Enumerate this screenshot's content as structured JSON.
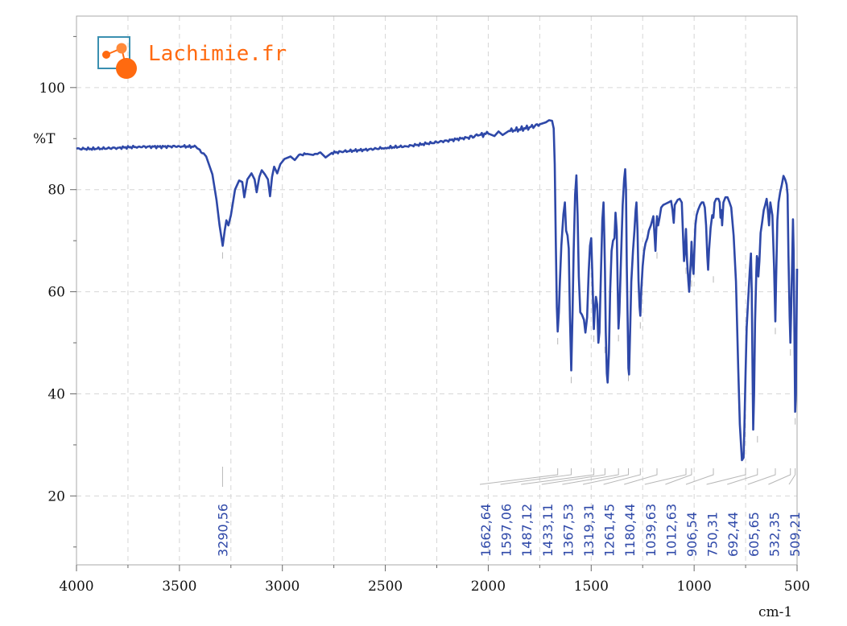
{
  "colors": {
    "series": "#2e48a8",
    "peak_label": "#2e48a8",
    "grid": "#d6d6d6",
    "logo": "#ff6a10",
    "logo_frame": "#3a8fb0"
  },
  "logo": {
    "text": "Lachimie.fr"
  },
  "chart_data": {
    "type": "line",
    "title": "",
    "xlabel": "cm-1",
    "ylabel": "%T",
    "xlim": [
      4000,
      500
    ],
    "ylim": [
      6.5,
      114
    ],
    "x_reversed": true,
    "grid": true,
    "x_ticks": [
      4000,
      3500,
      3000,
      2500,
      2000,
      1500,
      1000,
      500
    ],
    "x_tick_labels": [
      "4000",
      "3500",
      "3000",
      "2500",
      "2000",
      "1500",
      "1000",
      "500"
    ],
    "y_ticks": [
      20,
      40,
      60,
      80,
      100
    ],
    "y_tick_labels": [
      "20",
      "40",
      "60",
      "80",
      "100"
    ],
    "series": [
      {
        "points": [
          [
            4000,
            88.0
          ],
          [
            3900,
            88.0
          ],
          [
            3800,
            88.2
          ],
          [
            3700,
            88.4
          ],
          [
            3600,
            88.4
          ],
          [
            3500,
            88.5
          ],
          [
            3420,
            88.4
          ],
          [
            3370,
            86.5
          ],
          [
            3340,
            83
          ],
          [
            3320,
            78
          ],
          [
            3305,
            73
          ],
          [
            3290,
            69.0
          ],
          [
            3280,
            72
          ],
          [
            3272,
            74
          ],
          [
            3262,
            73
          ],
          [
            3250,
            75
          ],
          [
            3230,
            80
          ],
          [
            3210,
            81.8
          ],
          [
            3195,
            81.5
          ],
          [
            3185,
            78.5
          ],
          [
            3170,
            82
          ],
          [
            3150,
            83.2
          ],
          [
            3135,
            82
          ],
          [
            3125,
            79.5
          ],
          [
            3112,
            82.5
          ],
          [
            3100,
            83.8
          ],
          [
            3085,
            83
          ],
          [
            3070,
            82
          ],
          [
            3060,
            78.7
          ],
          [
            3050,
            82.5
          ],
          [
            3040,
            84.5
          ],
          [
            3025,
            83.2
          ],
          [
            3010,
            85
          ],
          [
            2990,
            86
          ],
          [
            2960,
            86.5
          ],
          [
            2940,
            85.8
          ],
          [
            2920,
            86.8
          ],
          [
            2880,
            87
          ],
          [
            2850,
            86.8
          ],
          [
            2815,
            87.3
          ],
          [
            2790,
            86.3
          ],
          [
            2760,
            87.2
          ],
          [
            2700,
            87.5
          ],
          [
            2600,
            87.8
          ],
          [
            2500,
            88.2
          ],
          [
            2400,
            88.5
          ],
          [
            2300,
            89
          ],
          [
            2200,
            89.6
          ],
          [
            2100,
            90.2
          ],
          [
            2050,
            90.6
          ],
          [
            2000,
            91
          ],
          [
            1970,
            90.5
          ],
          [
            1950,
            91.4
          ],
          [
            1930,
            90.7
          ],
          [
            1900,
            91.5
          ],
          [
            1850,
            91.8
          ],
          [
            1800,
            92.2
          ],
          [
            1750,
            92.8
          ],
          [
            1720,
            93.2
          ],
          [
            1705,
            93.6
          ],
          [
            1690,
            93.5
          ],
          [
            1682,
            92
          ],
          [
            1677,
            85
          ],
          [
            1672,
            70
          ],
          [
            1667,
            57
          ],
          [
            1662.64,
            52.2
          ],
          [
            1657,
            56
          ],
          [
            1652,
            62
          ],
          [
            1645,
            69
          ],
          [
            1635,
            75.2
          ],
          [
            1628,
            77.5
          ],
          [
            1622,
            72
          ],
          [
            1615,
            71
          ],
          [
            1609,
            68.5
          ],
          [
            1603,
            55
          ],
          [
            1597.06,
            44.6
          ],
          [
            1591,
            55
          ],
          [
            1585,
            68
          ],
          [
            1578,
            79
          ],
          [
            1572,
            82.8
          ],
          [
            1566,
            75
          ],
          [
            1560,
            63
          ],
          [
            1553,
            56
          ],
          [
            1545,
            55.5
          ],
          [
            1535,
            54.5
          ],
          [
            1528,
            52
          ],
          [
            1520,
            55
          ],
          [
            1512,
            64
          ],
          [
            1506,
            69
          ],
          [
            1500,
            70.5
          ],
          [
            1495,
            64
          ],
          [
            1491,
            58
          ],
          [
            1487.12,
            52.7
          ],
          [
            1483,
            56
          ],
          [
            1477,
            59
          ],
          [
            1471,
            57.5
          ],
          [
            1465,
            50
          ],
          [
            1460,
            52
          ],
          [
            1453,
            63
          ],
          [
            1446,
            74
          ],
          [
            1440,
            77.5
          ],
          [
            1436,
            70
          ],
          [
            1433.11,
            64
          ],
          [
            1429,
            52
          ],
          [
            1424,
            44
          ],
          [
            1420,
            42.2
          ],
          [
            1414,
            48
          ],
          [
            1408,
            60
          ],
          [
            1401,
            68
          ],
          [
            1394,
            70
          ],
          [
            1387,
            70.5
          ],
          [
            1382,
            75.5
          ],
          [
            1376,
            72
          ],
          [
            1371,
            60
          ],
          [
            1367.53,
            52.8
          ],
          [
            1363,
            56
          ],
          [
            1355,
            67
          ],
          [
            1347,
            77
          ],
          [
            1340,
            82
          ],
          [
            1335,
            84
          ],
          [
            1331,
            80
          ],
          [
            1327,
            65
          ],
          [
            1322,
            52
          ],
          [
            1319.31,
            45
          ],
          [
            1316,
            43.8
          ],
          [
            1311,
            52
          ],
          [
            1305,
            62
          ],
          [
            1297,
            68
          ],
          [
            1290,
            72
          ],
          [
            1284,
            76
          ],
          [
            1280,
            77.5
          ],
          [
            1275,
            72
          ],
          [
            1270,
            62
          ],
          [
            1265,
            57
          ],
          [
            1261.45,
            55.3
          ],
          [
            1257,
            60
          ],
          [
            1250,
            65
          ],
          [
            1243,
            68
          ],
          [
            1236,
            69.5
          ],
          [
            1227,
            70.5
          ],
          [
            1220,
            72
          ],
          [
            1210,
            73
          ],
          [
            1198,
            74.8
          ],
          [
            1192,
            71
          ],
          [
            1188,
            68
          ],
          [
            1184,
            72
          ],
          [
            1180.44,
            74.8
          ],
          [
            1175,
            73
          ],
          [
            1168,
            74.5
          ],
          [
            1160,
            76.5
          ],
          [
            1150,
            77
          ],
          [
            1140,
            77.2
          ],
          [
            1125,
            77.5
          ],
          [
            1112,
            77.8
          ],
          [
            1105,
            76
          ],
          [
            1099,
            73.5
          ],
          [
            1094,
            77
          ],
          [
            1080,
            78
          ],
          [
            1070,
            78.2
          ],
          [
            1060,
            77.5
          ],
          [
            1053,
            70
          ],
          [
            1049,
            66
          ],
          [
            1045,
            67.5
          ],
          [
            1039.63,
            72.3
          ],
          [
            1034,
            66
          ],
          [
            1028,
            62
          ],
          [
            1024,
            60
          ],
          [
            1019,
            64
          ],
          [
            1015,
            67
          ],
          [
            1012.63,
            69.8
          ],
          [
            1008,
            65.5
          ],
          [
            1003,
            63.5
          ],
          [
            999,
            68
          ],
          [
            994,
            73
          ],
          [
            988,
            75
          ],
          [
            981,
            76
          ],
          [
            971,
            77
          ],
          [
            963,
            77.5
          ],
          [
            955,
            77.5
          ],
          [
            948,
            76.5
          ],
          [
            942,
            73
          ],
          [
            936,
            67
          ],
          [
            932,
            64.3
          ],
          [
            928,
            68
          ],
          [
            920,
            72.5
          ],
          [
            912,
            75
          ],
          [
            906.54,
            74.5
          ],
          [
            901,
            77.5
          ],
          [
            893,
            78.2
          ],
          [
            882,
            78.2
          ],
          [
            876,
            77.5
          ],
          [
            872,
            74.5
          ],
          [
            868,
            76
          ],
          [
            864,
            73
          ],
          [
            858,
            77.5
          ],
          [
            848,
            78.5
          ],
          [
            838,
            78.5
          ],
          [
            828,
            77.5
          ],
          [
            820,
            76.5
          ],
          [
            808,
            71
          ],
          [
            797,
            62
          ],
          [
            786,
            45
          ],
          [
            778,
            34
          ],
          [
            768,
            27
          ],
          [
            760,
            27.5
          ],
          [
            756,
            33
          ],
          [
            750.31,
            44
          ],
          [
            745,
            53
          ],
          [
            738,
            58
          ],
          [
            730,
            64
          ],
          [
            724,
            67.5
          ],
          [
            720,
            60
          ],
          [
            716,
            43
          ],
          [
            713,
            33
          ],
          [
            709,
            40
          ],
          [
            704,
            54
          ],
          [
            698,
            64
          ],
          [
            695,
            67
          ],
          [
            692.44,
            66.5
          ],
          [
            688,
            63
          ],
          [
            683,
            66
          ],
          [
            677,
            71.5
          ],
          [
            670,
            73.5
          ],
          [
            662,
            76
          ],
          [
            655,
            77
          ],
          [
            648,
            78.2
          ],
          [
            642,
            76
          ],
          [
            636,
            73
          ],
          [
            630,
            77.5
          ],
          [
            620,
            75
          ],
          [
            612,
            65
          ],
          [
            605.65,
            54.2
          ],
          [
            602,
            62
          ],
          [
            596,
            74
          ],
          [
            590,
            77.5
          ],
          [
            582,
            79.5
          ],
          [
            574,
            81
          ],
          [
            566,
            82.7
          ],
          [
            558,
            82
          ],
          [
            551,
            81
          ],
          [
            546,
            79
          ],
          [
            542,
            67
          ],
          [
            536,
            55
          ],
          [
            532.35,
            50
          ],
          [
            529,
            56
          ],
          [
            524,
            66
          ],
          [
            520,
            74.2
          ],
          [
            517,
            68
          ],
          [
            513,
            52
          ],
          [
            509.21,
            36.5
          ],
          [
            506,
            40
          ],
          [
            503,
            52
          ],
          [
            500,
            64.5
          ]
        ]
      }
    ],
    "peak_marks": [
      {
        "x": 3290.56,
        "y": 69.0,
        "label": "3290,56"
      },
      {
        "x": 1662.64,
        "y": 52.2,
        "label": "1662,64"
      },
      {
        "x": 1597.06,
        "y": 44.6,
        "label": "1597,06"
      },
      {
        "x": 1487.12,
        "y": 52.7,
        "label": "1487,12"
      },
      {
        "x": 1433.11,
        "y": 50.5,
        "label": "1433,11"
      },
      {
        "x": 1367.53,
        "y": 52.8,
        "label": "1367,53"
      },
      {
        "x": 1319.31,
        "y": 45.0,
        "label": "1319,31"
      },
      {
        "x": 1261.45,
        "y": 55.3,
        "label": "1261,45"
      },
      {
        "x": 1180.44,
        "y": 69.0,
        "label": "1180,44"
      },
      {
        "x": 1039.63,
        "y": 66.0,
        "label": "1039,63"
      },
      {
        "x": 1012.63,
        "y": 63.5,
        "label": "1012,63"
      },
      {
        "x": 906.54,
        "y": 64.3,
        "label": "906,54"
      },
      {
        "x": 750.31,
        "y": 26.5,
        "label": "750,31"
      },
      {
        "x": 692.44,
        "y": 33.0,
        "label": "692,44"
      },
      {
        "x": 605.65,
        "y": 54.2,
        "label": "605,65"
      },
      {
        "x": 532.35,
        "y": 50.0,
        "label": "532,35"
      },
      {
        "x": 509.21,
        "y": 36.5,
        "label": "509,21"
      }
    ]
  }
}
